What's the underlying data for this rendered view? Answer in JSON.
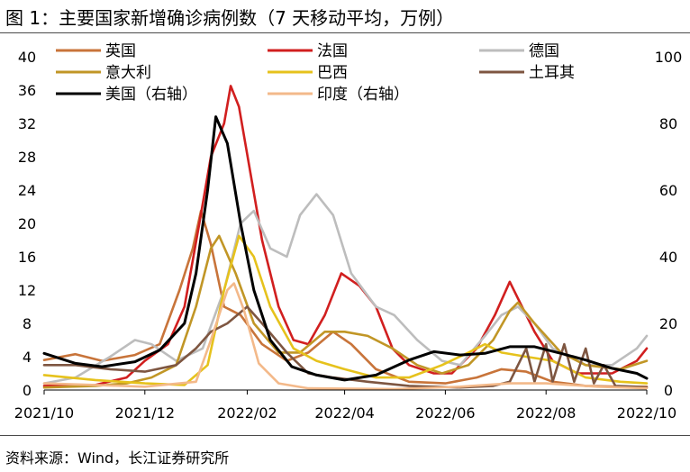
{
  "figure": {
    "title": "图 1：主要国家新增确诊病例数（7 天移动平均，万例）",
    "source": "资料来源：Wind，长江证券研究所"
  },
  "chart_data": {
    "type": "line",
    "title": "图 1：主要国家新增确诊病例数（7 天移动平均，万例）",
    "xlabel": "",
    "ylabel": "",
    "x_range": [
      "2021-10-01",
      "2022-10-01"
    ],
    "x_ticks": [
      "2021/10",
      "2021/12",
      "2022/02",
      "2022/04",
      "2022/06",
      "2022/08",
      "2022/10"
    ],
    "y_left": {
      "lim": [
        0,
        40
      ],
      "ticks": [
        0,
        4,
        8,
        12,
        16,
        20,
        24,
        28,
        32,
        36,
        40
      ]
    },
    "y_right": {
      "lim": [
        0,
        100
      ],
      "ticks": [
        0,
        20,
        40,
        60,
        80,
        100
      ]
    },
    "grid": false,
    "legend": "top, three columns",
    "series": [
      {
        "name": "英国",
        "axis": "left",
        "color": "#c8743a",
        "points": [
          [
            "2021-10-01",
            3.6
          ],
          [
            "2021-10-20",
            4.3
          ],
          [
            "2021-11-05",
            3.5
          ],
          [
            "2021-11-25",
            4.2
          ],
          [
            "2021-12-10",
            5.5
          ],
          [
            "2021-12-22",
            12.0
          ],
          [
            "2021-12-30",
            17.0
          ],
          [
            "2022-01-04",
            21.5
          ],
          [
            "2022-01-10",
            17.5
          ],
          [
            "2022-01-18",
            10.0
          ],
          [
            "2022-01-28",
            9.0
          ],
          [
            "2022-02-10",
            5.5
          ],
          [
            "2022-02-25",
            3.5
          ],
          [
            "2022-03-10",
            4.5
          ],
          [
            "2022-03-25",
            7.0
          ],
          [
            "2022-04-05",
            5.5
          ],
          [
            "2022-04-20",
            2.5
          ],
          [
            "2022-05-10",
            1.0
          ],
          [
            "2022-06-01",
            0.8
          ],
          [
            "2022-06-20",
            1.5
          ],
          [
            "2022-07-05",
            2.5
          ],
          [
            "2022-07-20",
            2.2
          ],
          [
            "2022-08-05",
            1.0
          ],
          [
            "2022-08-25",
            0.5
          ],
          [
            "2022-09-15",
            0.4
          ],
          [
            "2022-10-01",
            0.4
          ]
        ]
      },
      {
        "name": "法国",
        "axis": "left",
        "color": "#d11f1f",
        "points": [
          [
            "2021-10-01",
            0.5
          ],
          [
            "2021-11-01",
            0.6
          ],
          [
            "2021-11-20",
            1.5
          ],
          [
            "2021-12-01",
            3.5
          ],
          [
            "2021-12-15",
            5.5
          ],
          [
            "2021-12-25",
            10.0
          ],
          [
            "2022-01-03",
            20.0
          ],
          [
            "2022-01-10",
            28.0
          ],
          [
            "2022-01-18",
            32.0
          ],
          [
            "2022-01-22",
            36.5
          ],
          [
            "2022-01-27",
            34.0
          ],
          [
            "2022-02-03",
            26.0
          ],
          [
            "2022-02-10",
            18.0
          ],
          [
            "2022-02-20",
            10.0
          ],
          [
            "2022-03-01",
            6.0
          ],
          [
            "2022-03-10",
            5.5
          ],
          [
            "2022-03-20",
            9.0
          ],
          [
            "2022-03-30",
            14.0
          ],
          [
            "2022-04-10",
            12.5
          ],
          [
            "2022-04-20",
            10.0
          ],
          [
            "2022-04-30",
            5.0
          ],
          [
            "2022-05-10",
            3.0
          ],
          [
            "2022-05-25",
            2.0
          ],
          [
            "2022-06-05",
            2.0
          ],
          [
            "2022-06-20",
            5.0
          ],
          [
            "2022-07-01",
            9.0
          ],
          [
            "2022-07-10",
            13.0
          ],
          [
            "2022-07-15",
            11.0
          ],
          [
            "2022-07-25",
            7.0
          ],
          [
            "2022-08-05",
            3.5
          ],
          [
            "2022-08-20",
            2.0
          ],
          [
            "2022-09-10",
            2.0
          ],
          [
            "2022-09-25",
            3.5
          ],
          [
            "2022-10-01",
            5.0
          ]
        ]
      },
      {
        "name": "德国",
        "axis": "left",
        "color": "#bdbdbd",
        "points": [
          [
            "2021-10-01",
            0.8
          ],
          [
            "2021-10-20",
            1.5
          ],
          [
            "2021-11-10",
            4.0
          ],
          [
            "2021-11-25",
            6.0
          ],
          [
            "2021-12-05",
            5.5
          ],
          [
            "2021-12-20",
            3.5
          ],
          [
            "2022-01-05",
            5.0
          ],
          [
            "2022-01-18",
            12.0
          ],
          [
            "2022-01-28",
            20.0
          ],
          [
            "2022-02-05",
            21.5
          ],
          [
            "2022-02-15",
            17.0
          ],
          [
            "2022-02-25",
            16.0
          ],
          [
            "2022-03-05",
            21.0
          ],
          [
            "2022-03-15",
            23.5
          ],
          [
            "2022-03-25",
            21.0
          ],
          [
            "2022-04-05",
            14.0
          ],
          [
            "2022-04-20",
            10.0
          ],
          [
            "2022-05-01",
            9.0
          ],
          [
            "2022-05-15",
            6.0
          ],
          [
            "2022-05-30",
            3.5
          ],
          [
            "2022-06-10",
            3.0
          ],
          [
            "2022-06-25",
            6.5
          ],
          [
            "2022-07-05",
            9.0
          ],
          [
            "2022-07-15",
            10.0
          ],
          [
            "2022-07-25",
            8.0
          ],
          [
            "2022-08-05",
            5.0
          ],
          [
            "2022-08-25",
            3.0
          ],
          [
            "2022-09-10",
            3.0
          ],
          [
            "2022-09-25",
            5.0
          ],
          [
            "2022-10-01",
            6.5
          ]
        ]
      },
      {
        "name": "意大利",
        "axis": "left",
        "color": "#c19626",
        "points": [
          [
            "2021-10-01",
            0.3
          ],
          [
            "2021-11-01",
            0.5
          ],
          [
            "2021-11-20",
            0.8
          ],
          [
            "2021-12-05",
            1.5
          ],
          [
            "2021-12-20",
            3.0
          ],
          [
            "2022-01-01",
            10.0
          ],
          [
            "2022-01-10",
            17.0
          ],
          [
            "2022-01-15",
            18.5
          ],
          [
            "2022-01-25",
            14.0
          ],
          [
            "2022-02-05",
            8.0
          ],
          [
            "2022-02-20",
            4.5
          ],
          [
            "2022-03-05",
            4.5
          ],
          [
            "2022-03-20",
            7.0
          ],
          [
            "2022-04-01",
            7.0
          ],
          [
            "2022-04-15",
            6.5
          ],
          [
            "2022-04-30",
            5.0
          ],
          [
            "2022-05-15",
            3.0
          ],
          [
            "2022-05-30",
            2.0
          ],
          [
            "2022-06-15",
            3.0
          ],
          [
            "2022-06-30",
            6.0
          ],
          [
            "2022-07-10",
            9.5
          ],
          [
            "2022-07-15",
            10.5
          ],
          [
            "2022-07-25",
            8.0
          ],
          [
            "2022-08-10",
            4.5
          ],
          [
            "2022-08-25",
            3.0
          ],
          [
            "2022-09-15",
            2.5
          ],
          [
            "2022-10-01",
            3.5
          ]
        ]
      },
      {
        "name": "巴西",
        "axis": "left",
        "color": "#e6c21c",
        "points": [
          [
            "2021-10-01",
            1.8
          ],
          [
            "2021-11-01",
            1.2
          ],
          [
            "2021-12-01",
            0.8
          ],
          [
            "2021-12-25",
            0.6
          ],
          [
            "2022-01-08",
            3.0
          ],
          [
            "2022-01-18",
            12.0
          ],
          [
            "2022-01-27",
            18.5
          ],
          [
            "2022-02-05",
            16.0
          ],
          [
            "2022-02-15",
            10.0
          ],
          [
            "2022-03-01",
            5.0
          ],
          [
            "2022-03-15",
            3.5
          ],
          [
            "2022-04-01",
            2.5
          ],
          [
            "2022-04-20",
            1.5
          ],
          [
            "2022-05-10",
            1.5
          ],
          [
            "2022-05-30",
            3.0
          ],
          [
            "2022-06-15",
            4.5
          ],
          [
            "2022-06-25",
            5.5
          ],
          [
            "2022-07-05",
            4.5
          ],
          [
            "2022-07-20",
            4.0
          ],
          [
            "2022-08-05",
            3.5
          ],
          [
            "2022-08-25",
            1.5
          ],
          [
            "2022-09-15",
            1.0
          ],
          [
            "2022-10-01",
            0.8
          ]
        ]
      },
      {
        "name": "土耳其",
        "axis": "left",
        "color": "#7e5641",
        "points": [
          [
            "2021-10-01",
            3.0
          ],
          [
            "2021-10-20",
            3.0
          ],
          [
            "2021-11-10",
            2.5
          ],
          [
            "2021-12-01",
            2.2
          ],
          [
            "2021-12-20",
            3.0
          ],
          [
            "2022-01-01",
            5.0
          ],
          [
            "2022-01-10",
            7.0
          ],
          [
            "2022-01-20",
            8.0
          ],
          [
            "2022-02-01",
            10.0
          ],
          [
            "2022-02-10",
            8.0
          ],
          [
            "2022-02-25",
            4.5
          ],
          [
            "2022-03-10",
            2.0
          ],
          [
            "2022-03-25",
            1.5
          ],
          [
            "2022-04-15",
            1.0
          ],
          [
            "2022-05-10",
            0.5
          ],
          [
            "2022-06-10",
            0.3
          ],
          [
            "2022-06-30",
            0.5
          ],
          [
            "2022-07-10",
            1.0
          ],
          [
            "2022-07-20",
            5.0
          ],
          [
            "2022-07-25",
            1.0
          ],
          [
            "2022-08-01",
            5.5
          ],
          [
            "2022-08-05",
            1.0
          ],
          [
            "2022-08-12",
            5.5
          ],
          [
            "2022-08-18",
            1.0
          ],
          [
            "2022-08-25",
            5.0
          ],
          [
            "2022-08-30",
            0.8
          ],
          [
            "2022-09-05",
            3.0
          ],
          [
            "2022-09-12",
            0.5
          ],
          [
            "2022-09-25",
            0.4
          ],
          [
            "2022-10-01",
            0.3
          ]
        ]
      },
      {
        "name": "美国（右轴）",
        "axis": "right",
        "color": "#000000",
        "points": [
          [
            "2021-10-01",
            11.0
          ],
          [
            "2021-10-20",
            8.0
          ],
          [
            "2021-11-05",
            7.0
          ],
          [
            "2021-11-25",
            8.5
          ],
          [
            "2021-12-10",
            12.0
          ],
          [
            "2021-12-25",
            20.0
          ],
          [
            "2022-01-01",
            35.0
          ],
          [
            "2022-01-08",
            60.0
          ],
          [
            "2022-01-13",
            82.0
          ],
          [
            "2022-01-20",
            74.0
          ],
          [
            "2022-01-28",
            50.0
          ],
          [
            "2022-02-05",
            30.0
          ],
          [
            "2022-02-15",
            15.0
          ],
          [
            "2022-02-28",
            7.0
          ],
          [
            "2022-03-15",
            4.5
          ],
          [
            "2022-04-01",
            3.0
          ],
          [
            "2022-04-20",
            4.5
          ],
          [
            "2022-05-10",
            9.0
          ],
          [
            "2022-05-25",
            11.5
          ],
          [
            "2022-06-10",
            10.5
          ],
          [
            "2022-06-25",
            11.0
          ],
          [
            "2022-07-10",
            13.0
          ],
          [
            "2022-07-25",
            13.0
          ],
          [
            "2022-08-10",
            11.0
          ],
          [
            "2022-08-25",
            9.0
          ],
          [
            "2022-09-10",
            6.5
          ],
          [
            "2022-09-25",
            5.0
          ],
          [
            "2022-10-01",
            3.5
          ]
        ]
      },
      {
        "name": "印度（右轴）",
        "axis": "right",
        "color": "#f3b98a",
        "points": [
          [
            "2021-10-01",
            2.0
          ],
          [
            "2021-11-01",
            1.5
          ],
          [
            "2021-12-01",
            1.0
          ],
          [
            "2022-01-01",
            2.5
          ],
          [
            "2022-01-10",
            15.0
          ],
          [
            "2022-01-20",
            30.0
          ],
          [
            "2022-01-24",
            32.0
          ],
          [
            "2022-01-30",
            24.0
          ],
          [
            "2022-02-08",
            8.0
          ],
          [
            "2022-02-20",
            2.0
          ],
          [
            "2022-03-10",
            0.5
          ],
          [
            "2022-05-01",
            0.3
          ],
          [
            "2022-06-10",
            1.0
          ],
          [
            "2022-07-10",
            2.0
          ],
          [
            "2022-08-01",
            2.0
          ],
          [
            "2022-09-01",
            1.0
          ],
          [
            "2022-10-01",
            0.5
          ]
        ]
      }
    ]
  }
}
